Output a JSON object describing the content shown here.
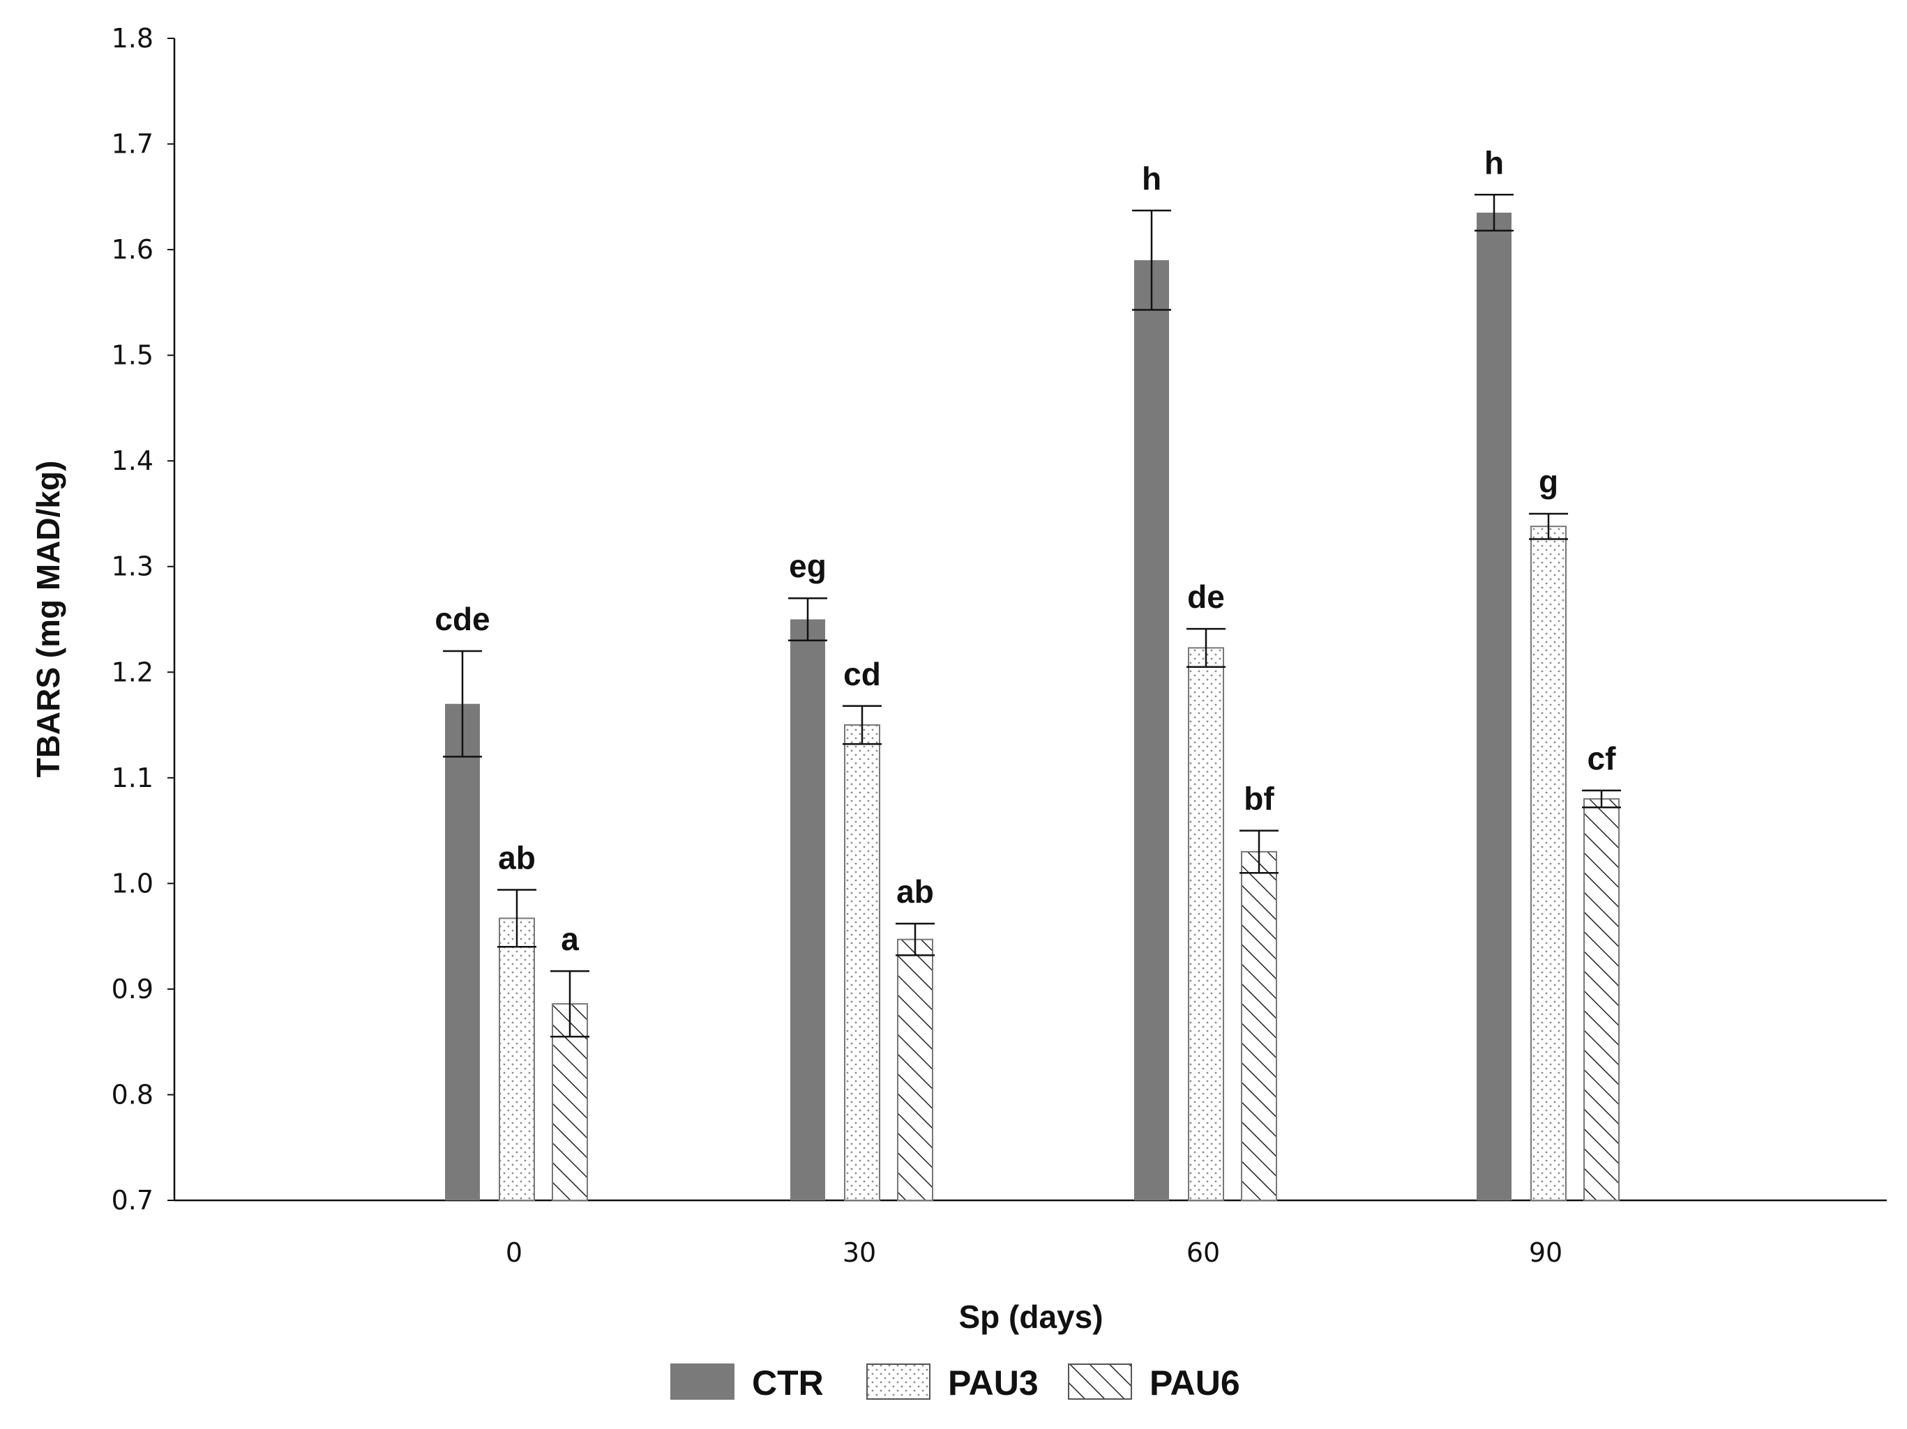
{
  "chart_data": {
    "type": "bar",
    "ylabel": "TBARS (mg MAD/kg)",
    "xlabel": "Sp (days)",
    "ylim": [
      0.7,
      1.8
    ],
    "yticks": [
      "0.7",
      "0.8",
      "0.9",
      "1.0",
      "1.1",
      "1.2",
      "1.3",
      "1.4",
      "1.5",
      "1.6",
      "1.7",
      "1.8"
    ],
    "categories": [
      "0",
      "30",
      "60",
      "90"
    ],
    "legend_position": "bottom",
    "grid": false,
    "series": [
      {
        "name": "CTR",
        "pattern": "solid",
        "color": "#7a7a7a",
        "values": [
          1.17,
          1.25,
          1.59,
          1.635
        ],
        "errors": [
          0.05,
          0.02,
          0.047,
          0.017
        ],
        "letters": [
          "cde",
          "eg",
          "h",
          "h"
        ]
      },
      {
        "name": "PAU3",
        "pattern": "dotted",
        "color": "#ffffff",
        "values": [
          0.967,
          1.15,
          1.223,
          1.338
        ],
        "errors": [
          0.027,
          0.018,
          0.018,
          0.012
        ],
        "letters": [
          "ab",
          "cd",
          "de",
          "g"
        ]
      },
      {
        "name": "PAU6",
        "pattern": "hatched",
        "color": "#ffffff",
        "values": [
          0.886,
          0.947,
          1.03,
          1.08
        ],
        "errors": [
          0.031,
          0.015,
          0.02,
          0.008
        ],
        "letters": [
          "a",
          "ab",
          "bf",
          "cf"
        ]
      }
    ]
  }
}
